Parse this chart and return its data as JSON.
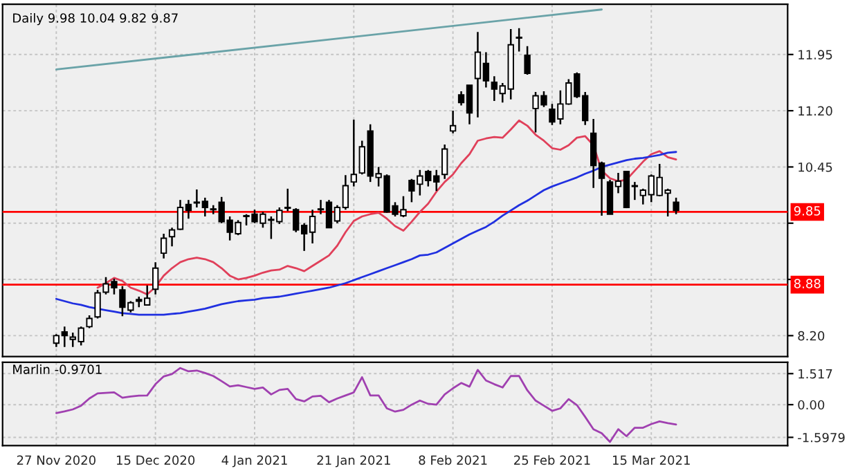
{
  "chart_data": [
    {
      "type": "candlestick",
      "title": "Daily 9.98 10.04 9.82 9.87",
      "categories": [
        null,
        null,
        null,
        null,
        null,
        null,
        null,
        null,
        null,
        null,
        null,
        null,
        null,
        null,
        null,
        null,
        null,
        null,
        null,
        null,
        null,
        null,
        null,
        null,
        null,
        null,
        null,
        null,
        null,
        null,
        null,
        null,
        null,
        null,
        null,
        null,
        null,
        null,
        null,
        null,
        null,
        null,
        null,
        null,
        null,
        null,
        null,
        null,
        null,
        null,
        null,
        null,
        null,
        null,
        null,
        null,
        null,
        null,
        null,
        null,
        null,
        null,
        null,
        null,
        null,
        null,
        null,
        null,
        null,
        null,
        null,
        null,
        null,
        null,
        null,
        null
      ],
      "ohlc": [
        [
          8.1,
          8.22,
          8.05,
          8.2
        ],
        [
          8.25,
          8.32,
          8.05,
          8.2
        ],
        [
          8.15,
          8.24,
          8.05,
          8.18
        ],
        [
          8.12,
          8.32,
          8.07,
          8.3
        ],
        [
          8.32,
          8.47,
          8.3,
          8.43
        ],
        [
          8.45,
          8.81,
          8.43,
          8.77
        ],
        [
          8.78,
          8.98,
          8.75,
          8.89
        ],
        [
          8.92,
          8.96,
          8.75,
          8.84
        ],
        [
          8.81,
          8.86,
          8.46,
          8.58
        ],
        [
          8.54,
          8.66,
          8.51,
          8.64
        ],
        [
          8.68,
          8.72,
          8.58,
          8.66
        ],
        [
          8.61,
          8.87,
          8.6,
          8.7
        ],
        [
          8.82,
          9.18,
          8.75,
          9.1
        ],
        [
          9.3,
          9.56,
          9.23,
          9.5
        ],
        [
          9.52,
          9.64,
          9.39,
          9.61
        ],
        [
          9.62,
          10.01,
          9.61,
          9.91
        ],
        [
          9.95,
          10.01,
          9.76,
          9.87
        ],
        [
          9.97,
          10.15,
          9.91,
          9.98
        ],
        [
          9.99,
          10.04,
          9.79,
          9.91
        ],
        [
          9.88,
          9.94,
          9.82,
          9.89
        ],
        [
          9.98,
          10.05,
          9.7,
          9.72
        ],
        [
          9.74,
          9.79,
          9.47,
          9.58
        ],
        [
          9.56,
          9.74,
          9.54,
          9.71
        ],
        [
          9.79,
          9.82,
          9.67,
          9.8
        ],
        [
          9.82,
          9.88,
          9.7,
          9.72
        ],
        [
          9.7,
          9.85,
          9.64,
          9.82
        ],
        [
          9.74,
          9.79,
          9.49,
          9.75
        ],
        [
          9.72,
          9.91,
          9.69,
          9.87
        ],
        [
          9.9,
          10.16,
          9.86,
          9.91
        ],
        [
          9.88,
          9.9,
          9.58,
          9.61
        ],
        [
          9.67,
          9.7,
          9.33,
          9.56
        ],
        [
          9.58,
          9.88,
          9.43,
          9.79
        ],
        [
          9.88,
          10.01,
          9.82,
          9.89
        ],
        [
          9.98,
          10.01,
          9.64,
          9.64
        ],
        [
          9.73,
          9.94,
          9.7,
          9.91
        ],
        [
          9.91,
          10.34,
          9.88,
          10.2
        ],
        [
          10.25,
          11.08,
          10.19,
          10.35
        ],
        [
          10.37,
          10.8,
          10.35,
          10.72
        ],
        [
          10.93,
          11.02,
          10.25,
          10.33
        ],
        [
          10.31,
          10.45,
          10.19,
          10.36
        ],
        [
          10.33,
          10.35,
          9.84,
          9.85
        ],
        [
          9.93,
          9.98,
          9.79,
          9.82
        ],
        [
          9.8,
          10.06,
          9.78,
          9.88
        ],
        [
          10.27,
          10.29,
          9.98,
          10.13
        ],
        [
          10.22,
          10.41,
          10.07,
          10.33
        ],
        [
          10.39,
          10.41,
          10.19,
          10.27
        ],
        [
          10.33,
          10.41,
          10.13,
          10.25
        ],
        [
          10.35,
          10.75,
          10.29,
          10.69
        ],
        [
          10.93,
          11.2,
          10.9,
          11.0
        ],
        [
          11.41,
          11.46,
          11.27,
          11.31
        ],
        [
          11.54,
          11.54,
          11.02,
          11.17
        ],
        [
          11.63,
          12.25,
          11.11,
          11.98
        ],
        [
          11.83,
          11.98,
          11.51,
          11.6
        ],
        [
          11.58,
          11.66,
          11.33,
          11.49
        ],
        [
          11.43,
          11.57,
          11.31,
          11.53
        ],
        [
          11.49,
          12.29,
          11.35,
          12.08
        ],
        [
          12.17,
          12.3,
          11.99,
          12.18
        ],
        [
          11.94,
          12.06,
          11.68,
          11.7
        ],
        [
          11.23,
          11.45,
          10.91,
          11.4
        ],
        [
          11.4,
          11.46,
          11.25,
          11.28
        ],
        [
          11.22,
          11.29,
          11.01,
          11.05
        ],
        [
          11.09,
          11.47,
          11.02,
          11.29
        ],
        [
          11.29,
          11.62,
          11.28,
          11.57
        ],
        [
          11.69,
          11.71,
          11.37,
          11.39
        ],
        [
          11.4,
          11.45,
          11.01,
          11.07
        ],
        [
          10.9,
          11.09,
          10.17,
          10.47
        ],
        [
          10.5,
          10.52,
          9.8,
          10.3
        ],
        [
          10.25,
          10.28,
          9.82,
          9.82
        ],
        [
          10.19,
          10.37,
          10.1,
          10.26
        ],
        [
          10.39,
          10.39,
          9.9,
          9.91
        ],
        [
          10.19,
          10.25,
          10.01,
          10.2
        ],
        [
          10.07,
          10.16,
          9.95,
          10.14
        ],
        [
          10.08,
          10.35,
          9.98,
          10.33
        ],
        [
          10.07,
          10.49,
          10.06,
          10.31
        ],
        [
          10.1,
          10.16,
          9.79,
          10.14
        ],
        [
          9.98,
          10.04,
          9.82,
          9.87
        ]
      ],
      "series": [
        {
          "type": "line",
          "color": "#e0405a",
          "values": [
            null,
            null,
            null,
            null,
            null,
            8.84,
            8.9,
            8.97,
            8.93,
            8.84,
            8.8,
            8.75,
            8.85,
            9.0,
            9.1,
            9.18,
            9.22,
            9.24,
            9.22,
            9.18,
            9.1,
            9.0,
            8.95,
            8.97,
            9.0,
            9.04,
            9.07,
            9.08,
            9.13,
            9.1,
            9.06,
            9.13,
            9.2,
            9.27,
            9.4,
            9.58,
            9.73,
            9.79,
            9.82,
            9.84,
            9.76,
            9.66,
            9.6,
            9.72,
            9.85,
            9.96,
            10.12,
            10.25,
            10.35,
            10.5,
            10.62,
            10.8,
            10.83,
            10.85,
            10.84,
            10.95,
            11.07,
            11.0,
            10.88,
            10.8,
            10.7,
            10.68,
            10.74,
            10.84,
            10.86,
            10.74,
            10.4,
            10.3,
            10.26,
            10.28,
            10.4,
            10.52,
            10.62,
            10.66,
            10.58,
            10.55
          ]
        },
        {
          "type": "line",
          "color": "#2030e0",
          "values": [
            8.69,
            8.66,
            8.63,
            8.61,
            8.58,
            8.56,
            8.54,
            8.52,
            8.5,
            8.49,
            8.48,
            8.48,
            8.48,
            8.48,
            8.49,
            8.5,
            8.52,
            8.54,
            8.56,
            8.59,
            8.62,
            8.64,
            8.66,
            8.67,
            8.68,
            8.7,
            8.71,
            8.72,
            8.74,
            8.76,
            8.78,
            8.8,
            8.82,
            8.84,
            8.87,
            8.9,
            8.94,
            8.98,
            9.02,
            9.06,
            9.1,
            9.14,
            9.18,
            9.22,
            9.27,
            9.28,
            9.31,
            9.37,
            9.43,
            9.49,
            9.55,
            9.6,
            9.65,
            9.72,
            9.8,
            9.87,
            9.94,
            10.0,
            10.07,
            10.14,
            10.19,
            10.23,
            10.27,
            10.31,
            10.36,
            10.4,
            10.45,
            10.48,
            10.51,
            10.54,
            10.56,
            10.57,
            10.59,
            10.61,
            10.64,
            10.65
          ]
        },
        {
          "type": "line",
          "color": "#6aa3a8",
          "values": [
            11.75,
            null,
            null,
            null,
            null,
            null,
            null,
            null,
            null,
            null,
            null,
            null,
            null,
            null,
            null,
            null,
            null,
            null,
            null,
            null,
            null,
            null,
            null,
            null,
            null,
            null,
            null,
            null,
            null,
            null,
            null,
            null,
            null,
            null,
            null,
            null,
            null,
            null,
            null,
            null,
            null,
            null,
            null,
            null,
            null,
            null,
            null,
            null,
            null,
            null,
            null,
            null,
            null,
            null,
            null,
            null,
            null,
            null,
            null,
            null,
            null,
            null,
            null,
            null,
            null,
            null,
            12.55,
            null,
            null,
            null,
            null,
            null,
            null,
            null,
            null,
            null
          ]
        }
      ],
      "ylim": [
        7.92,
        12.62
      ],
      "yticks": [
        {
          "value": 8.2,
          "label": "8.20"
        },
        {
          "value": 8.95,
          "label": null
        },
        {
          "value": 9.7,
          "label": null
        },
        {
          "value": 10.45,
          "label": "10.45"
        },
        {
          "value": 11.2,
          "label": "11.20"
        },
        {
          "value": 11.95,
          "label": "11.95"
        }
      ],
      "ref_lines": [
        {
          "axis": "y",
          "value": 9.85,
          "label": "9.85",
          "color": "#ff0000"
        },
        {
          "axis": "y",
          "value": 8.88,
          "label": "8.88",
          "color": "#ff0000"
        }
      ],
      "grid": true
    },
    {
      "type": "line",
      "title": "Marlin -0.9701",
      "categories": [
        "27 Nov 2020",
        null,
        null,
        null,
        null,
        null,
        null,
        null,
        null,
        null,
        null,
        null,
        "15 Dec 2020",
        null,
        null,
        null,
        null,
        null,
        null,
        null,
        null,
        null,
        null,
        null,
        "4 Jan 2021",
        null,
        null,
        null,
        null,
        null,
        null,
        null,
        null,
        null,
        null,
        null,
        "21 Jan 2021",
        null,
        null,
        null,
        null,
        null,
        null,
        null,
        null,
        null,
        null,
        null,
        "8 Feb 2021",
        null,
        null,
        null,
        null,
        null,
        null,
        null,
        null,
        null,
        null,
        null,
        "25 Feb 2021",
        null,
        null,
        null,
        null,
        null,
        null,
        null,
        null,
        null,
        null,
        null,
        "15 Mar 2021",
        null,
        null,
        null
      ],
      "series": [
        {
          "color": "#a040b0",
          "values": [
            -0.41,
            -0.33,
            -0.23,
            -0.05,
            0.3,
            0.55,
            0.58,
            0.6,
            0.34,
            0.4,
            0.44,
            0.45,
            1.0,
            1.38,
            1.5,
            1.79,
            1.63,
            1.67,
            1.55,
            1.4,
            1.15,
            0.89,
            0.95,
            0.86,
            0.77,
            0.84,
            0.5,
            0.72,
            0.77,
            0.27,
            0.16,
            0.4,
            0.43,
            0.12,
            0.3,
            0.45,
            0.6,
            1.34,
            0.45,
            0.45,
            -0.18,
            -0.34,
            -0.25,
            0.0,
            0.2,
            0.04,
            0.0,
            0.5,
            0.8,
            1.06,
            0.88,
            1.7,
            1.18,
            1.0,
            0.84,
            1.4,
            1.4,
            0.7,
            0.2,
            -0.05,
            -0.3,
            -0.18,
            0.27,
            -0.02,
            -0.6,
            -1.2,
            -1.4,
            -1.82,
            -1.2,
            -1.54,
            -1.13,
            -1.13,
            -0.95,
            -0.82,
            -0.9,
            -0.97
          ]
        }
      ],
      "ylim": [
        -2.0,
        2.07
      ],
      "yticks": [
        1.517,
        {
          "value": 0,
          "label": "0.00"
        },
        -1.5979
      ],
      "grid": true
    }
  ]
}
